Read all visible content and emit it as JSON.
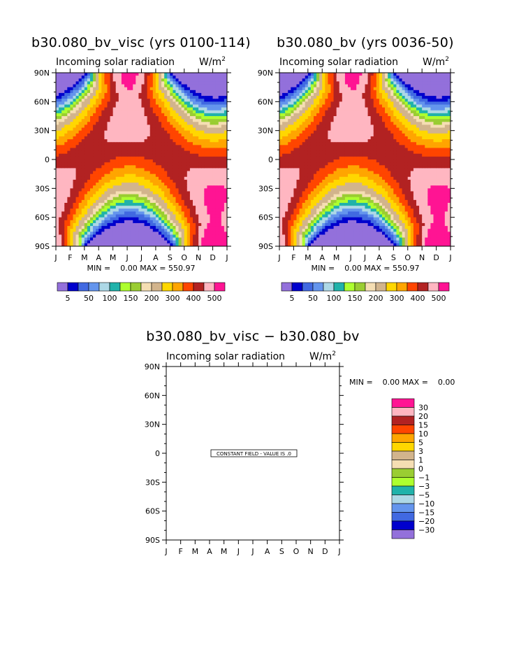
{
  "panels": [
    {
      "title": "b30.080_bv_visc (yrs 0100-114)",
      "subtitle": "Incoming solar radiation",
      "units": "W/m",
      "units_exp": "2",
      "minmax": "MIN =    0.00 MAX = 550.97"
    },
    {
      "title": "b30.080_bv (yrs 0036-50)",
      "subtitle": "Incoming solar radiation",
      "units": "W/m",
      "units_exp": "2",
      "minmax": "MIN =    0.00 MAX = 550.97"
    },
    {
      "title": "b30.080_bv_visc − b30.080_bv",
      "subtitle": "Incoming solar radiation",
      "units": "W/m",
      "units_exp": "2",
      "minmax": "MIN =    0.00 MAX =    0.00",
      "annotation": "CONSTANT FIELD - VALUE IS .0"
    }
  ],
  "chart_data": [
    {
      "type": "heatmap",
      "title": "b30.080_bv_visc (yrs 0100-114)",
      "subtitle": "Incoming solar radiation",
      "units": "W/m2",
      "x_ticks": [
        "J",
        "F",
        "M",
        "A",
        "M",
        "J",
        "J",
        "A",
        "S",
        "O",
        "N",
        "D",
        "J"
      ],
      "y_ticks": [
        "90N",
        "60N",
        "30N",
        "0",
        "30S",
        "60S",
        "90S"
      ],
      "min": 0.0,
      "max": 550.97,
      "contour_levels": [
        5,
        25,
        50,
        75,
        100,
        125,
        150,
        175,
        200,
        250,
        300,
        350,
        400,
        450,
        500
      ],
      "legend_labels": [
        "5",
        "50",
        "100",
        "150",
        "200",
        "300",
        "400",
        "500"
      ],
      "colors": [
        "#9370db",
        "#0000cd",
        "#4169e1",
        "#6495ed",
        "#add8e6",
        "#20b2aa",
        "#adff2f",
        "#9acd32",
        "#f5deb3",
        "#d2b48c",
        "#ffd700",
        "#ffa500",
        "#ff4500",
        "#b22222",
        "#ffb6c1",
        "#ff1493"
      ]
    },
    {
      "type": "heatmap",
      "title": "b30.080_bv (yrs 0036-50)",
      "subtitle": "Incoming solar radiation",
      "units": "W/m2",
      "x_ticks": [
        "J",
        "F",
        "M",
        "A",
        "M",
        "J",
        "J",
        "A",
        "S",
        "O",
        "N",
        "D",
        "J"
      ],
      "y_ticks": [
        "90N",
        "60N",
        "30N",
        "0",
        "30S",
        "60S",
        "90S"
      ],
      "min": 0.0,
      "max": 550.97,
      "contour_levels": [
        5,
        25,
        50,
        75,
        100,
        125,
        150,
        175,
        200,
        250,
        300,
        350,
        400,
        450,
        500
      ],
      "legend_labels": [
        "5",
        "50",
        "100",
        "150",
        "200",
        "300",
        "400",
        "500"
      ],
      "colors": [
        "#9370db",
        "#0000cd",
        "#4169e1",
        "#6495ed",
        "#add8e6",
        "#20b2aa",
        "#adff2f",
        "#9acd32",
        "#f5deb3",
        "#d2b48c",
        "#ffd700",
        "#ffa500",
        "#ff4500",
        "#b22222",
        "#ffb6c1",
        "#ff1493"
      ]
    },
    {
      "type": "heatmap",
      "title": "b30.080_bv_visc − b30.080_bv",
      "subtitle": "Incoming solar radiation",
      "units": "W/m2",
      "x_ticks": [
        "J",
        "F",
        "M",
        "A",
        "M",
        "J",
        "J",
        "A",
        "S",
        "O",
        "N",
        "D",
        "J"
      ],
      "y_ticks": [
        "90N",
        "60N",
        "30N",
        "0",
        "30S",
        "60S",
        "90S"
      ],
      "min": 0.0,
      "max": 0.0,
      "constant_value": 0.0,
      "legend_labels": [
        "30",
        "20",
        "15",
        "10",
        "5",
        "3",
        "1",
        "0",
        "−1",
        "−3",
        "−5",
        "−10",
        "−15",
        "−20",
        "−30"
      ],
      "colors": [
        "#ff1493",
        "#ffb6c1",
        "#b22222",
        "#ff4500",
        "#ffa500",
        "#ffd700",
        "#d2b48c",
        "#f5deb3",
        "#9acd32",
        "#adff2f",
        "#20b2aa",
        "#add8e6",
        "#6495ed",
        "#4169e1",
        "#0000cd",
        "#9370db"
      ]
    }
  ]
}
